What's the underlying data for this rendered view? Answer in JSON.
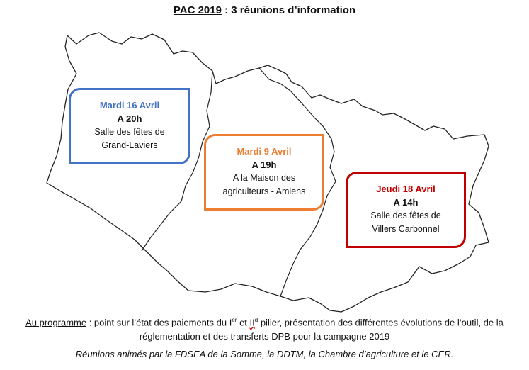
{
  "title": {
    "pac": "PAC 2019",
    "rest": " : 3 réunions d’information"
  },
  "colors": {
    "blue": "#4472c4",
    "orange": "#ed7d31",
    "red": "#c00000"
  },
  "meetings": [
    {
      "date": "Mardi 16 Avril",
      "time": "A 20h",
      "place1": "Salle des fêtes de",
      "place2": "Grand-Laviers",
      "color": "#4472c4"
    },
    {
      "date": "Mardi 9 Avril",
      "time": "A 19h",
      "place1": "A la Maison des",
      "place2": "agriculteurs - Amiens",
      "color": "#ed7d31"
    },
    {
      "date": "Jeudi 18 Avril",
      "time": "A 14h",
      "place1": "Salle des fêtes de",
      "place2": "Villers Carbonnel",
      "color": "#c00000"
    }
  ],
  "programme": {
    "label": "Au programme",
    "t1": " : point sur l’état des paiements du I",
    "sup1": "er",
    "t2": " et ",
    "roman2": "II",
    "sup2": "d",
    "t3": " pilier, présentation des différentes évolutions de l’outil, de la réglementation et des transferts DPB pour la campagne 2019"
  },
  "credits": "Réunions animés par la FDSEA de la Somme, la DDTM, la Chambre d’agriculture et le CER."
}
